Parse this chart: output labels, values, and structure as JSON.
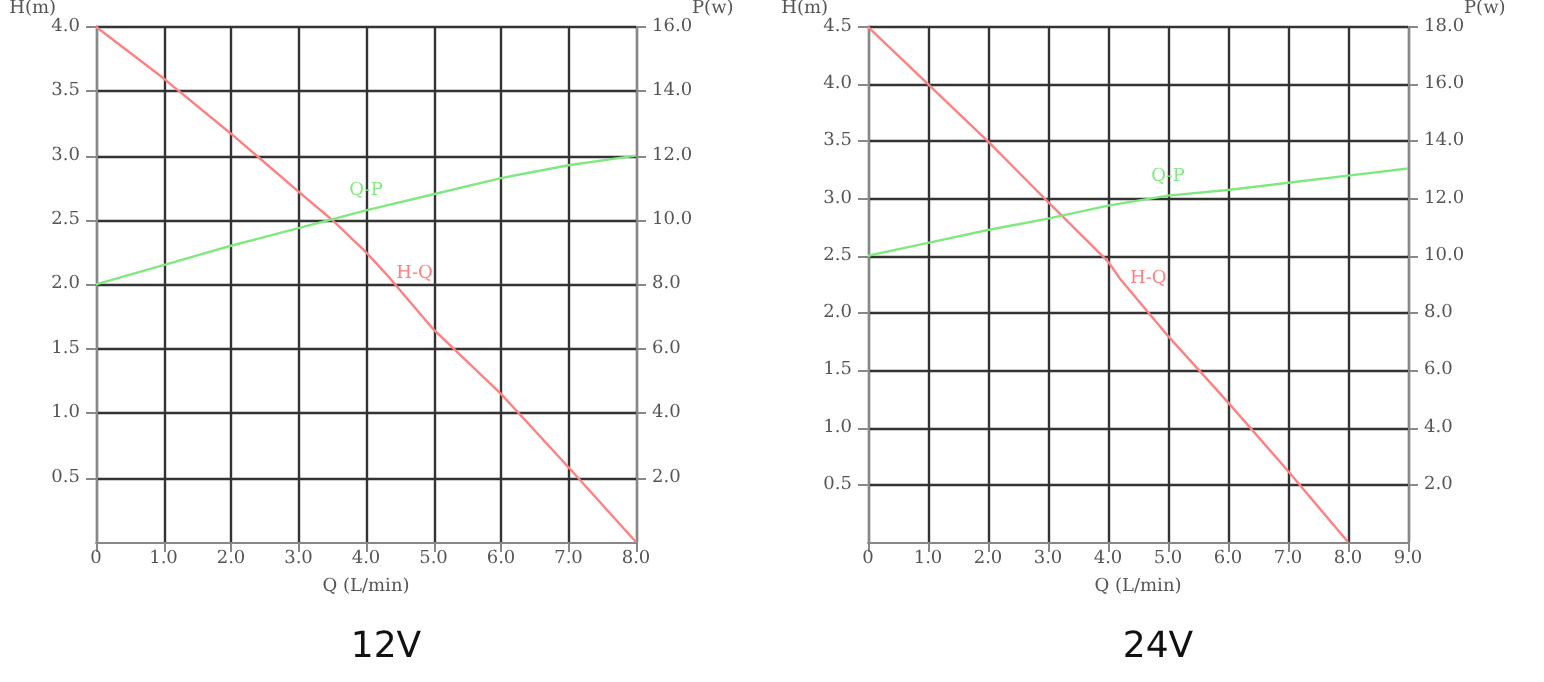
{
  "chart_data": [
    {
      "type": "line",
      "title": "12V",
      "xlabel": "Q (L/min)",
      "ylabel": "H(m)",
      "y2label": "P(w)",
      "grid": true,
      "marker": "none",
      "legend": false,
      "xlim": [
        0,
        8
      ],
      "xticks": [
        0,
        {
          "value": 1,
          "label": "1.0"
        },
        {
          "value": 2,
          "label": "2.0"
        },
        {
          "value": 3,
          "label": "3.0"
        },
        {
          "value": 4,
          "label": "4.0"
        },
        {
          "value": 5,
          "label": "5.0"
        },
        {
          "value": 6,
          "label": "6.0"
        },
        {
          "value": 7,
          "label": "7.0"
        },
        {
          "value": 8,
          "label": "8.0"
        }
      ],
      "ylim": [
        0,
        4
      ],
      "yticks": [
        {
          "value": 0.5,
          "label": "0.5"
        },
        {
          "value": 1,
          "label": "1.0"
        },
        {
          "value": 1.5,
          "label": "1.5"
        },
        {
          "value": 2,
          "label": "2.0"
        },
        {
          "value": 2.5,
          "label": "2.5"
        },
        {
          "value": 3,
          "label": "3.0"
        },
        {
          "value": 3.5,
          "label": "3.5"
        },
        {
          "value": 4,
          "label": "4.0"
        }
      ],
      "y2lim": [
        0,
        16
      ],
      "y2ticks": [
        {
          "value": 2,
          "label": "2.0"
        },
        {
          "value": 4,
          "label": "4.0"
        },
        {
          "value": 6,
          "label": "6.0"
        },
        {
          "value": 8,
          "label": "8.0"
        },
        {
          "value": 10,
          "label": "10.0"
        },
        {
          "value": 12,
          "label": "12.0"
        },
        {
          "value": 14,
          "label": "14.0"
        },
        {
          "value": 16,
          "label": "16.0"
        }
      ],
      "series": [
        {
          "name": "H-Q",
          "color": "#ff8080",
          "x": [
            0,
            1,
            2,
            3,
            3.5,
            4,
            4.3,
            5,
            6,
            7,
            8
          ],
          "values": [
            4.0,
            3.6,
            3.17,
            2.72,
            2.5,
            2.25,
            2.08,
            1.65,
            1.15,
            0.58,
            0
          ]
        },
        {
          "name": "Q-P",
          "color": "#80e880",
          "axis": "y2",
          "x": [
            0,
            1,
            2,
            3,
            4,
            5,
            6,
            7,
            8
          ],
          "values": [
            8.0,
            8.6,
            9.2,
            9.75,
            10.3,
            10.8,
            11.3,
            11.7,
            12.0
          ]
        }
      ]
    },
    {
      "type": "line",
      "title": "24V",
      "xlabel": "Q (L/min)",
      "ylabel": "H(m)",
      "y2label": "P(w)",
      "grid": true,
      "marker": "none",
      "legend": false,
      "xlim": [
        0,
        9
      ],
      "xticks": [
        0,
        {
          "value": 1,
          "label": "1.0"
        },
        {
          "value": 2,
          "label": "2.0"
        },
        {
          "value": 3,
          "label": "3.0"
        },
        {
          "value": 4,
          "label": "4.0"
        },
        {
          "value": 5,
          "label": "5.0"
        },
        {
          "value": 6,
          "label": "6.0"
        },
        {
          "value": 7,
          "label": "7.0"
        },
        {
          "value": 8,
          "label": "8.0"
        },
        {
          "value": 9,
          "label": "9.0"
        }
      ],
      "ylim": [
        0,
        4.5
      ],
      "yticks": [
        {
          "value": 0.5,
          "label": "0.5"
        },
        {
          "value": 1,
          "label": "1.0"
        },
        {
          "value": 1.5,
          "label": "1.5"
        },
        {
          "value": 2,
          "label": "2.0"
        },
        {
          "value": 2.5,
          "label": "2.5"
        },
        {
          "value": 3,
          "label": "3.0"
        },
        {
          "value": 3.5,
          "label": "3.5"
        },
        {
          "value": 4,
          "label": "4.0"
        },
        {
          "value": 4.5,
          "label": "4.5"
        }
      ],
      "y2lim": [
        0,
        18
      ],
      "y2ticks": [
        {
          "value": 2,
          "label": "2.0"
        },
        {
          "value": 4,
          "label": "4.0"
        },
        {
          "value": 6,
          "label": "6.0"
        },
        {
          "value": 8,
          "label": "8.0"
        },
        {
          "value": 10,
          "label": "10.0"
        },
        {
          "value": 12,
          "label": "12.0"
        },
        {
          "value": 14,
          "label": "14.0"
        },
        {
          "value": 16,
          "label": "16.0"
        },
        {
          "value": 18,
          "label": "18.0"
        }
      ],
      "series": [
        {
          "name": "H-Q",
          "color": "#ff8080",
          "x": [
            0,
            1,
            2,
            3,
            4,
            4.2,
            5,
            6,
            7,
            8
          ],
          "values": [
            4.5,
            4.0,
            3.5,
            2.97,
            2.45,
            2.3,
            1.8,
            1.22,
            0.62,
            0
          ]
        },
        {
          "name": "Q-P",
          "color": "#80e880",
          "axis": "y2",
          "x": [
            0,
            1,
            2,
            3,
            4,
            5,
            6,
            7,
            8,
            9
          ],
          "values": [
            10.0,
            10.45,
            10.9,
            11.3,
            11.75,
            12.1,
            12.3,
            12.55,
            12.8,
            13.05
          ]
        }
      ]
    }
  ]
}
